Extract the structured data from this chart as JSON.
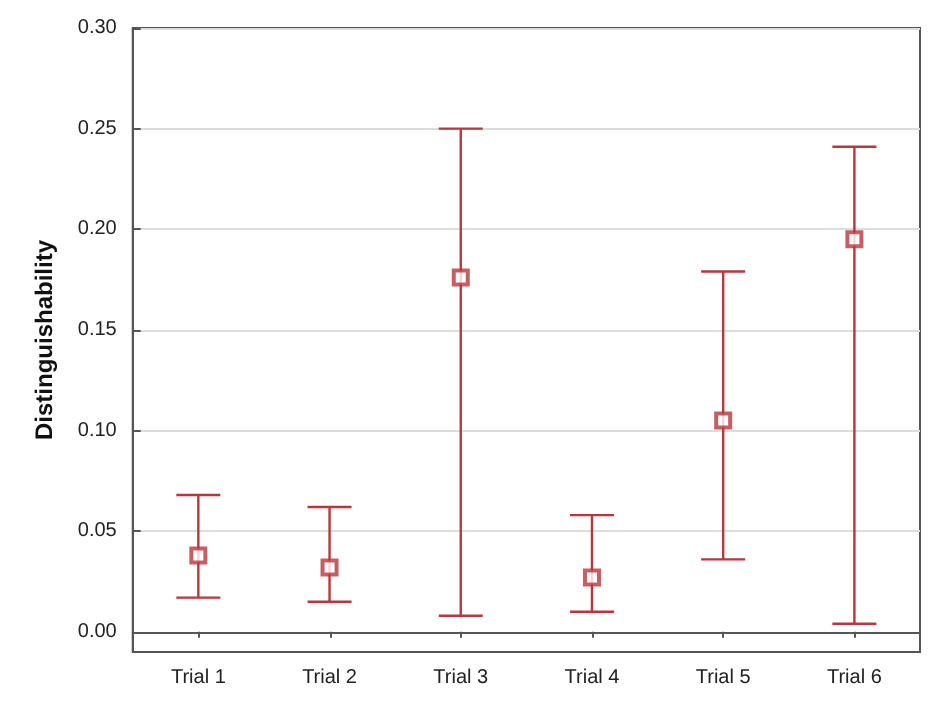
{
  "chart_data": {
    "type": "scatter",
    "ylabel": "Distinguishability",
    "categories": [
      "Trial 1",
      "Trial 2",
      "Trial 3",
      "Trial 4",
      "Trial 5",
      "Trial 6"
    ],
    "values": [
      0.038,
      0.032,
      0.176,
      0.027,
      0.105,
      0.195
    ],
    "errors": [
      [
        0.017,
        0.068
      ],
      [
        0.015,
        0.062
      ],
      [
        0.008,
        0.25
      ],
      [
        0.01,
        0.058
      ],
      [
        0.036,
        0.179
      ],
      [
        0.004,
        0.241
      ]
    ],
    "color": "#b8373c",
    "marker": "square",
    "ylim": [
      -0.01,
      0.3
    ],
    "yticks": [
      {
        "value": 0,
        "label": "0.00"
      },
      {
        "value": 0.05,
        "label": "0.05"
      },
      {
        "value": 0.1,
        "label": "0.10"
      },
      {
        "value": 0.15,
        "label": "0.15"
      },
      {
        "value": 0.2,
        "label": "0.20"
      },
      {
        "value": 0.25,
        "label": "0.25"
      },
      {
        "value": 0.3,
        "label": "0.30"
      }
    ],
    "grid": "y"
  }
}
